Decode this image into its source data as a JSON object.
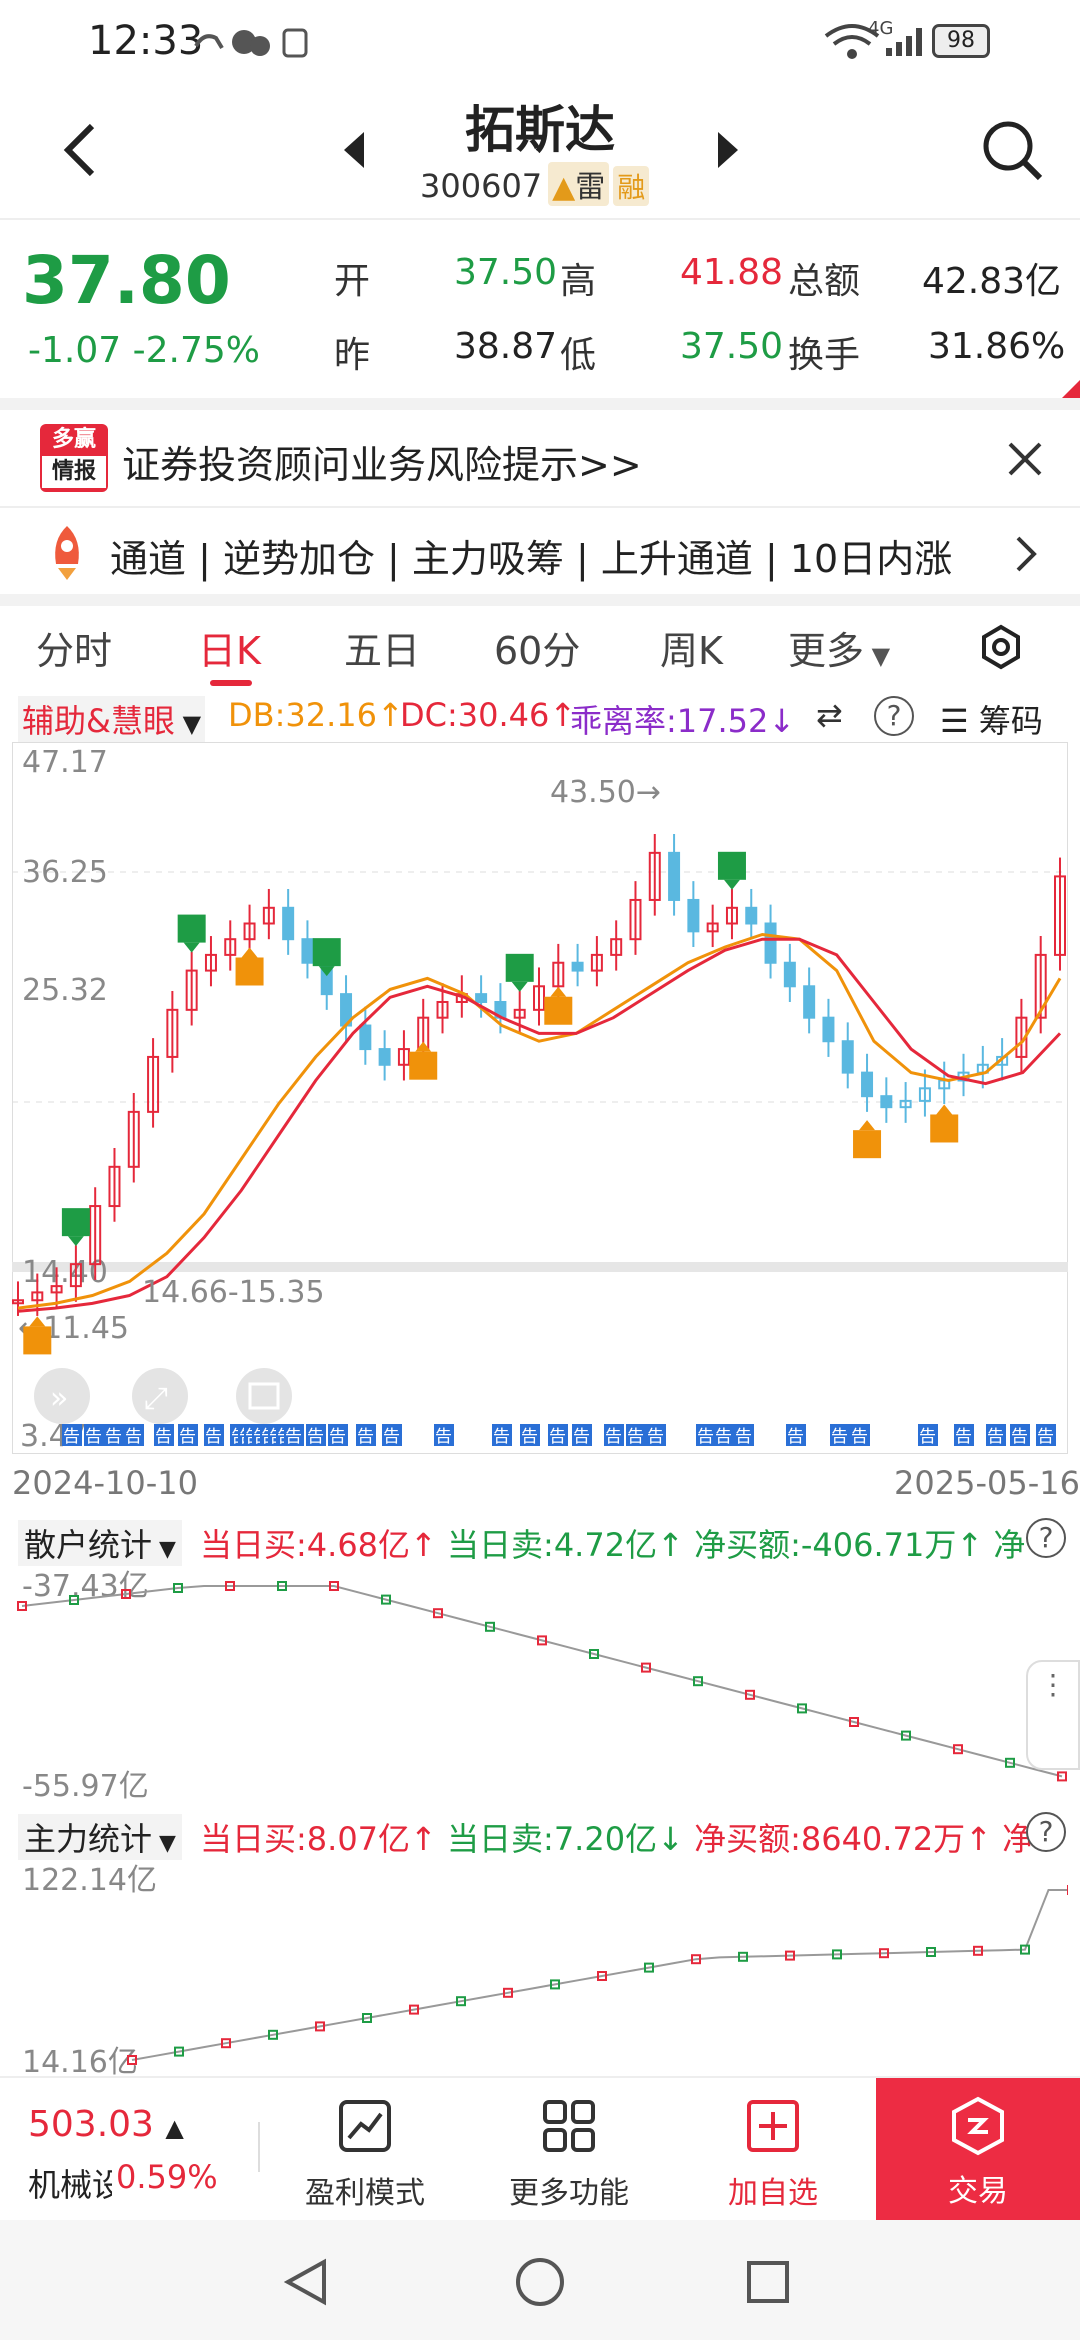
{
  "status": {
    "time": "12:33",
    "battery": "98",
    "net": "4G"
  },
  "header": {
    "title": "拓斯达",
    "code": "300607",
    "warn": "雷",
    "rong": "融"
  },
  "quote": {
    "price": "37.80",
    "change": "-1.07",
    "change_pct": "-2.75%",
    "open_label": "开",
    "open": "37.50",
    "high_label": "高",
    "high": "41.88",
    "amount_label": "总额",
    "amount": "42.83亿",
    "prev_label": "昨",
    "prev": "38.87",
    "low_label": "低",
    "low": "37.50",
    "turnover_label": "换手",
    "turnover": "31.86%"
  },
  "risk": {
    "logo_top": "多赢",
    "logo_bottom": "情报",
    "text": "证券投资顾问业务风险提示>>"
  },
  "signals": {
    "text": "通道 | 逆势加仓 | 主力吸筹 | 上升通道 | 10日内涨"
  },
  "tabs": [
    "分时",
    "日K",
    "五日",
    "60分",
    "周K",
    "更多"
  ],
  "indicator": {
    "name": "辅助&慧眼",
    "db": "DB:32.16↑",
    "dc": "DC:30.46↑",
    "deviation": "乖离率:17.52↓",
    "chips": "筹码"
  },
  "chart": {
    "y_labels": [
      "47.17",
      "36.25",
      "25.32",
      "14.40",
      "3.47"
    ],
    "high_annot": "43.50→",
    "low_annot": "←11.45",
    "range_annot": "14.66-15.35",
    "date_start": "2024-10-10",
    "date_end": "2025-05-16",
    "notice_tag": "告"
  },
  "chart_data": {
    "type": "candlestick",
    "ylim": [
      3.47,
      47.17
    ],
    "y_ticks": [
      47.17,
      36.25,
      25.32,
      14.4,
      3.47
    ],
    "x_range": [
      "2024-10-10",
      "2025-05-16"
    ],
    "annotations": [
      "43.50→",
      "←11.45",
      "14.66-15.35"
    ],
    "series": [
      {
        "name": "price",
        "values": [
          12.5,
          13.0,
          13.4,
          14.8,
          18.5,
          21.0,
          24.5,
          28.0,
          31.0,
          33.5,
          34.5,
          35.5,
          36.5,
          37.5,
          35.5,
          34.0,
          32.0,
          30.0,
          28.5,
          27.5,
          28.5,
          30.5,
          31.5,
          32.0,
          31.5,
          30.5,
          31.0,
          32.5,
          34.0,
          33.5,
          34.5,
          35.5,
          38.0,
          41.0,
          38.0,
          36.0,
          36.5,
          37.5,
          36.5,
          34.0,
          32.5,
          30.5,
          29.0,
          27.0,
          25.5,
          24.8,
          25.2,
          26.0,
          26.5,
          27.0,
          27.5,
          28.0,
          30.5,
          34.5,
          39.5
        ]
      },
      {
        "name": "MA-orange",
        "values": [
          12.0,
          12.3,
          12.8,
          13.7,
          15.5,
          18.0,
          21.5,
          25.0,
          28.0,
          30.5,
          32.3,
          33.0,
          32.0,
          30.0,
          29.0,
          29.5,
          31.0,
          32.5,
          34.0,
          35.0,
          35.8,
          35.5,
          33.5,
          29.0,
          27.0,
          26.5,
          27.0,
          29.0,
          33.0
        ]
      },
      {
        "name": "MA-red",
        "values": [
          11.8,
          12.0,
          12.3,
          12.8,
          14.0,
          16.5,
          19.5,
          23.0,
          26.5,
          29.5,
          31.8,
          32.5,
          31.8,
          30.5,
          29.5,
          29.5,
          30.5,
          32.0,
          33.5,
          34.8,
          35.5,
          35.5,
          34.5,
          31.5,
          28.5,
          26.8,
          26.3,
          27.0,
          29.5
        ]
      }
    ]
  },
  "retail": {
    "name": "散户统计",
    "buy": "当日买:4.68亿↑",
    "sell": "当日卖:4.72亿↑",
    "net": "净买额:-406.71万↑",
    "net_cut": "净",
    "top": "-37.43亿",
    "bottom": "-55.97亿"
  },
  "main": {
    "name": "主力统计",
    "buy": "当日买:8.07亿↑",
    "sell": "当日卖:7.20亿↓",
    "net": "净买额:8640.72万↑",
    "net_cut": "净",
    "top": "122.14亿",
    "bottom": "14.16亿"
  },
  "bottom": {
    "index_value": "503.03",
    "index_name": "机械设",
    "index_pct": "0.59%",
    "profit": "盈利模式",
    "more": "更多功能",
    "watch": "加自选",
    "trade": "交易"
  },
  "help_glyph": "?",
  "colors": {
    "red": "#e5283b",
    "green": "#1e9c45",
    "orange": "#f0920a",
    "blue": "#5ab8e0",
    "purple": "#8b2cc9",
    "trade": "#ed2c43"
  }
}
